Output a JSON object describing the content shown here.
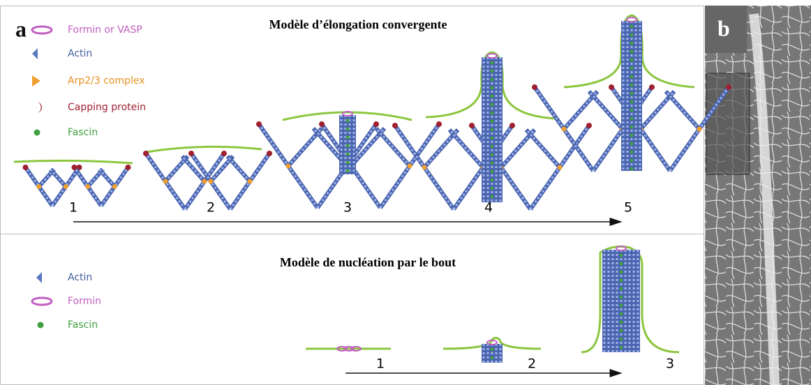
{
  "panel_a": {
    "label": "a",
    "top": {
      "title": "Modèle d’élongation convergente",
      "legend": [
        {
          "label": "Formin or VASP"
        },
        {
          "label": "Actin"
        },
        {
          "label": "Arp2/3 complex"
        },
        {
          "label": "Capping protein"
        },
        {
          "label": "Fascin"
        }
      ],
      "steps": [
        "1",
        "2",
        "3",
        "4",
        "5"
      ]
    },
    "bottom": {
      "title": "Modèle de nucléation par le bout",
      "legend": [
        {
          "label": "Actin"
        },
        {
          "label": "Formin"
        },
        {
          "label": "Fascin"
        }
      ],
      "steps": [
        "1",
        "2",
        "3"
      ]
    }
  },
  "panel_b": {
    "label": "b"
  }
}
